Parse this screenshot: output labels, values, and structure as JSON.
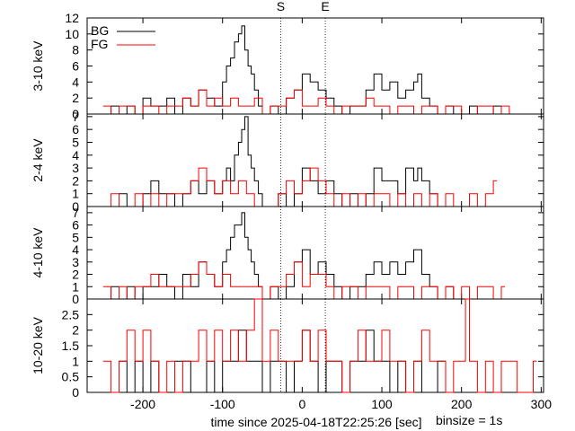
{
  "chart_data": {
    "type": "line",
    "markers": [
      {
        "label": "S",
        "x": -27
      },
      {
        "label": "E",
        "x": 29
      }
    ],
    "legend": {
      "placement": "top-left",
      "entries": [
        {
          "name": "BG",
          "color": "#000000"
        },
        {
          "name": "FG",
          "color": "#ff0000"
        }
      ]
    },
    "xlim": [
      -270,
      303
    ],
    "xticks": [
      {
        "v": -200,
        "t": "-200"
      },
      {
        "v": -100,
        "t": "-100"
      },
      {
        "v": 0,
        "t": "0"
      },
      {
        "v": 100,
        "t": "100"
      },
      {
        "v": 200,
        "t": "200"
      },
      {
        "v": 300,
        "t": "300"
      }
    ],
    "xlabel": "time since 2025-04-18T22:25:26 [sec]",
    "binsize_label": "binsize = 1s",
    "panels": [
      {
        "ylabel": "3-10 keV",
        "ylim": [
          0,
          12
        ],
        "yticks": [
          {
            "v": 0,
            "t": "0"
          },
          {
            "v": 2,
            "t": "2"
          },
          {
            "v": 4,
            "t": "4"
          },
          {
            "v": 6,
            "t": "6"
          },
          {
            "v": 8,
            "t": "8"
          },
          {
            "v": 10,
            "t": "10"
          },
          {
            "v": 12,
            "t": "12"
          }
        ],
        "series": [
          {
            "name": "BG",
            "color": "#000000",
            "x": [
              -250,
              -240,
              -230,
              -220,
              -210,
              -200,
              -190,
              -180,
              -170,
              -160,
              -150,
              -140,
              -130,
              -120,
              -110,
              -100,
              -95,
              -90,
              -85,
              -80,
              -76,
              -72,
              -68,
              -64,
              -60,
              -55,
              -50,
              -40,
              -30,
              -20,
              -10,
              0,
              10,
              20,
              30,
              40,
              50,
              60,
              70,
              80,
              90,
              100,
              110,
              120,
              130,
              140,
              145,
              150,
              160,
              170,
              180,
              190,
              200,
              210,
              220,
              230,
              240,
              250,
              260,
              270
            ],
            "y": [
              0,
              1,
              0,
              1,
              0,
              2,
              1,
              1,
              2,
              0,
              2,
              1,
              3,
              2,
              1,
              4,
              6,
              7,
              9,
              10,
              11,
              8,
              6,
              5,
              3,
              1,
              0,
              1,
              0,
              2,
              3,
              5,
              4,
              3,
              2,
              1,
              0,
              1,
              1,
              3,
              5,
              3,
              4,
              2,
              3,
              4,
              5,
              2,
              1,
              0,
              1,
              0,
              0,
              1,
              0,
              0,
              1,
              0,
              0,
              0
            ]
          },
          {
            "name": "FG",
            "color": "#ff0000",
            "x": [
              -250,
              -240,
              -230,
              -220,
              -210,
              -200,
              -190,
              -180,
              -170,
              -160,
              -150,
              -140,
              -130,
              -120,
              -110,
              -100,
              -90,
              -80,
              -70,
              -60,
              -50,
              -40,
              -30,
              -20,
              -10,
              0,
              10,
              20,
              30,
              40,
              50,
              60,
              70,
              80,
              90,
              100,
              110,
              120,
              130,
              140,
              150,
              160,
              170,
              180,
              190,
              200,
              210,
              220,
              230,
              240,
              250,
              260
            ],
            "y": [
              1,
              0,
              1,
              1,
              0,
              1,
              1,
              0,
              1,
              1,
              2,
              1,
              3,
              1,
              2,
              1,
              2,
              1,
              1,
              2,
              0,
              1,
              1,
              2,
              3,
              1,
              1,
              2,
              1,
              0,
              1,
              1,
              1,
              2,
              1,
              1,
              0,
              1,
              1,
              0,
              1,
              1,
              0,
              1,
              1,
              0,
              0,
              1,
              1,
              0,
              1,
              0
            ]
          }
        ]
      },
      {
        "ylabel": "2-4 keV",
        "ylim": [
          0,
          7.2
        ],
        "yticks": [
          {
            "v": 0,
            "t": "0"
          },
          {
            "v": 1,
            "t": "1"
          },
          {
            "v": 2,
            "t": "2"
          },
          {
            "v": 3,
            "t": "3"
          },
          {
            "v": 4,
            "t": "4"
          },
          {
            "v": 5,
            "t": "5"
          },
          {
            "v": 6,
            "t": "6"
          },
          {
            "v": 7,
            "t": "7"
          }
        ],
        "series": [
          {
            "name": "BG",
            "color": "#000000",
            "x": [
              -250,
              -240,
              -230,
              -220,
              -210,
              -200,
              -190,
              -180,
              -170,
              -160,
              -150,
              -140,
              -130,
              -120,
              -110,
              -100,
              -95,
              -90,
              -85,
              -80,
              -76,
              -72,
              -68,
              -64,
              -60,
              -55,
              -50,
              -40,
              -30,
              -20,
              -10,
              0,
              10,
              20,
              30,
              40,
              50,
              60,
              70,
              80,
              90,
              100,
              110,
              120,
              130,
              140,
              145,
              150,
              160,
              170,
              180,
              190,
              200
            ],
            "y": [
              0,
              0,
              1,
              0,
              0,
              1,
              2,
              1,
              1,
              0,
              1,
              2,
              1,
              2,
              1,
              2,
              3,
              2,
              4,
              5,
              6,
              7,
              4,
              3,
              2,
              1,
              0,
              0,
              1,
              0,
              1,
              3,
              2,
              1,
              2,
              1,
              0,
              1,
              0,
              1,
              3,
              2,
              2,
              1,
              3,
              2,
              3,
              2,
              1,
              0,
              0,
              0,
              0
            ]
          },
          {
            "name": "FG",
            "color": "#ff0000",
            "x": [
              -250,
              -240,
              -230,
              -220,
              -210,
              -200,
              -190,
              -180,
              -170,
              -160,
              -150,
              -140,
              -130,
              -120,
              -110,
              -100,
              -90,
              -80,
              -70,
              -60,
              -50,
              -40,
              -30,
              -20,
              -10,
              0,
              10,
              20,
              30,
              40,
              50,
              60,
              70,
              80,
              90,
              100,
              110,
              120,
              130,
              140,
              150,
              160,
              170,
              180,
              190,
              200,
              210,
              220,
              230,
              240
            ],
            "y": [
              0,
              1,
              0,
              0,
              1,
              0,
              1,
              0,
              1,
              1,
              1,
              2,
              3,
              2,
              1,
              2,
              1,
              2,
              1,
              0,
              0,
              0,
              1,
              2,
              1,
              2,
              3,
              2,
              1,
              0,
              1,
              0,
              1,
              0,
              1,
              1,
              0,
              1,
              0,
              1,
              0,
              1,
              0,
              1,
              0,
              0,
              1,
              0,
              1,
              2
            ]
          }
        ]
      },
      {
        "ylabel": "4-10 keV",
        "ylim": [
          0,
          7.5
        ],
        "yticks": [
          {
            "v": 0,
            "t": "0"
          },
          {
            "v": 1,
            "t": "1"
          },
          {
            "v": 2,
            "t": "2"
          },
          {
            "v": 3,
            "t": "3"
          },
          {
            "v": 4,
            "t": "4"
          },
          {
            "v": 5,
            "t": "5"
          },
          {
            "v": 6,
            "t": "6"
          },
          {
            "v": 7,
            "t": "7"
          }
        ],
        "series": [
          {
            "name": "BG",
            "color": "#000000",
            "x": [
              -250,
              -240,
              -230,
              -220,
              -210,
              -200,
              -190,
              -180,
              -170,
              -160,
              -150,
              -140,
              -130,
              -120,
              -110,
              -100,
              -95,
              -90,
              -85,
              -80,
              -76,
              -72,
              -68,
              -64,
              -60,
              -55,
              -50,
              -40,
              -30,
              -20,
              -10,
              0,
              10,
              20,
              30,
              40,
              50,
              60,
              70,
              80,
              90,
              100,
              110,
              120,
              130,
              140,
              145,
              150,
              160,
              170,
              180,
              190,
              200
            ],
            "y": [
              0,
              1,
              0,
              1,
              0,
              1,
              1,
              2,
              1,
              0,
              2,
              1,
              3,
              2,
              1,
              3,
              4,
              5,
              6,
              6,
              7,
              5,
              4,
              3,
              2,
              1,
              0,
              1,
              0,
              1,
              3,
              4,
              2,
              3,
              2,
              1,
              0,
              1,
              1,
              2,
              3,
              2,
              3,
              2,
              3,
              4,
              4,
              2,
              1,
              0,
              1,
              0,
              0
            ]
          },
          {
            "name": "FG",
            "color": "#ff0000",
            "x": [
              -250,
              -240,
              -230,
              -220,
              -210,
              -200,
              -190,
              -180,
              -170,
              -160,
              -150,
              -140,
              -130,
              -120,
              -110,
              -100,
              -90,
              -80,
              -70,
              -60,
              -50,
              -40,
              -30,
              -20,
              -10,
              0,
              10,
              20,
              30,
              40,
              50,
              60,
              70,
              80,
              90,
              100,
              110,
              120,
              130,
              140,
              150,
              160,
              170,
              180,
              190,
              200,
              210,
              220,
              230,
              240,
              250
            ],
            "y": [
              1,
              0,
              1,
              0,
              1,
              1,
              2,
              1,
              1,
              1,
              1,
              2,
              3,
              2,
              1,
              2,
              1,
              1,
              1,
              1,
              0,
              1,
              1,
              2,
              3,
              1,
              2,
              2,
              1,
              0,
              1,
              1,
              0,
              1,
              1,
              1,
              0,
              1,
              1,
              0,
              1,
              1,
              0,
              1,
              0,
              1,
              0,
              1,
              1,
              0,
              1
            ]
          }
        ]
      },
      {
        "ylabel": "10-20 keV",
        "ylim": [
          0,
          3
        ],
        "yticks": [
          {
            "v": 0,
            "t": "0"
          },
          {
            "v": 0.5,
            "t": "0.5"
          },
          {
            "v": 1,
            "t": "1"
          },
          {
            "v": 1.5,
            "t": "1.5"
          },
          {
            "v": 2,
            "t": "2"
          },
          {
            "v": 2.5,
            "t": "2.5"
          }
        ],
        "series": [
          {
            "name": "BG",
            "color": "#000000",
            "x": [
              -250,
              -240,
              -230,
              -220,
              -210,
              -200,
              -190,
              -180,
              -170,
              -160,
              -150,
              -140,
              -130,
              -120,
              -110,
              -100,
              -90,
              -80,
              -70,
              -60,
              -50,
              -40,
              -30,
              -20,
              -10,
              0,
              10,
              20,
              30,
              40,
              50,
              60,
              70,
              80,
              90,
              100,
              110,
              120,
              130,
              140,
              150,
              160,
              170,
              180,
              190,
              200
            ],
            "y": [
              0,
              0,
              1,
              0,
              1,
              0,
              1,
              0,
              0,
              1,
              1,
              0,
              0,
              1,
              0,
              1,
              1,
              2,
              1,
              1,
              0,
              1,
              1,
              0,
              1,
              2,
              1,
              0,
              1,
              1,
              0,
              1,
              1,
              2,
              1,
              1,
              0,
              1,
              0,
              1,
              0,
              0,
              1,
              0,
              0,
              0
            ]
          },
          {
            "name": "FG",
            "color": "#ff0000",
            "x": [
              -250,
              -240,
              -230,
              -220,
              -210,
              -200,
              -190,
              -180,
              -170,
              -160,
              -150,
              -140,
              -130,
              -120,
              -110,
              -100,
              -90,
              -80,
              -70,
              -60,
              -50,
              -40,
              -30,
              -20,
              -10,
              0,
              10,
              20,
              30,
              40,
              50,
              60,
              70,
              80,
              90,
              100,
              110,
              120,
              130,
              140,
              150,
              160,
              170,
              180,
              190,
              200,
              205,
              210,
              220,
              230,
              240,
              250,
              260,
              270,
              280,
              290
            ],
            "y": [
              1,
              0,
              1,
              2,
              1,
              2,
              1,
              0,
              1,
              0,
              1,
              1,
              2,
              1,
              2,
              1,
              2,
              1,
              2,
              3,
              1,
              2,
              1,
              1,
              1,
              2,
              1,
              2,
              1,
              1,
              0,
              1,
              2,
              1,
              1,
              2,
              1,
              1,
              0,
              1,
              2,
              1,
              1,
              0,
              1,
              1,
              3,
              1,
              0,
              1,
              0,
              1,
              1,
              0,
              0,
              1
            ]
          }
        ]
      }
    ]
  }
}
